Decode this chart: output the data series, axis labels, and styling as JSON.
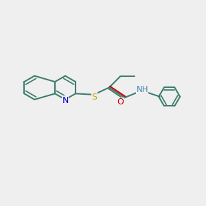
{
  "bg_color": "#efefef",
  "bond_color": "#3d7d6e",
  "bond_width": 1.5,
  "atom_colors": {
    "N": "#0000cc",
    "S": "#bbaa00",
    "O": "#cc0000",
    "NH": "#4488aa",
    "H": "#4488aa"
  },
  "font_size": 9,
  "font_family": "DejaVu Sans"
}
